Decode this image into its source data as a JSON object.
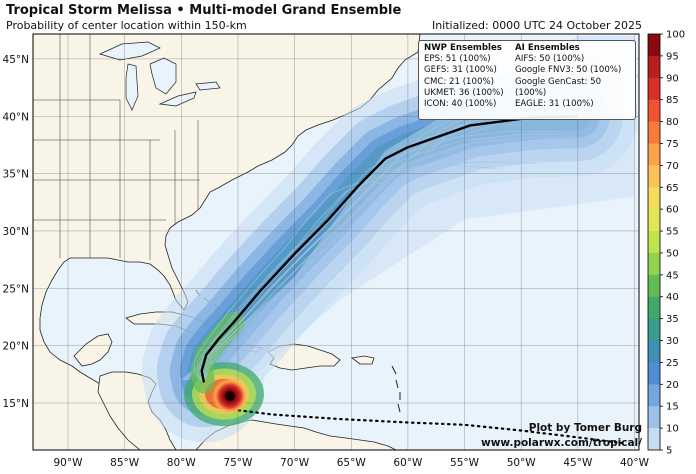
{
  "title": "Tropical Storm Melissa • Multi-model Grand Ensemble",
  "subtitle": "Probability of center location within 150-km",
  "initialized": "Initialized: 0000 UTC 24 October 2025",
  "legend": {
    "nwp_header": "NWP Ensembles",
    "ai_header": "AI Ensembles",
    "nwp_items": [
      "EPS: 51 (100%)",
      "GEFS: 31 (100%)",
      "CMC: 21 (100%)",
      "UKMET: 36 (100%)",
      "ICON: 40 (100%)"
    ],
    "ai_items": [
      "AIFS: 50 (100%)",
      "Google FNV3: 50 (100%)",
      "Google GenCast: 50 (100%)",
      "EAGLE: 31 (100%)"
    ]
  },
  "credit": {
    "line1": "Plot by Tomer Burg",
    "line2": "www.polarwx.com/tropical/"
  },
  "lat_labels": [
    {
      "deg": 45,
      "text": "45°N"
    },
    {
      "deg": 40,
      "text": "40°N"
    },
    {
      "deg": 35,
      "text": "35°N"
    },
    {
      "deg": 30,
      "text": "30°N"
    },
    {
      "deg": 25,
      "text": "25°N"
    },
    {
      "deg": 20,
      "text": "20°N"
    },
    {
      "deg": 15,
      "text": "15°N"
    }
  ],
  "lon_labels": [
    {
      "deg": -90,
      "text": "90°W"
    },
    {
      "deg": -85,
      "text": "85°W"
    },
    {
      "deg": -80,
      "text": "80°W"
    },
    {
      "deg": -75,
      "text": "75°W"
    },
    {
      "deg": -70,
      "text": "70°W"
    },
    {
      "deg": -65,
      "text": "65°W"
    },
    {
      "deg": -60,
      "text": "60°W"
    },
    {
      "deg": -55,
      "text": "55°W"
    },
    {
      "deg": -50,
      "text": "50°W"
    },
    {
      "deg": -45,
      "text": "45°W"
    },
    {
      "deg": -40,
      "text": "40°W"
    }
  ],
  "colorbar": {
    "ticks": [
      100,
      95,
      90,
      85,
      80,
      75,
      70,
      65,
      60,
      55,
      50,
      45,
      40,
      35,
      30,
      25,
      20,
      15,
      10,
      5
    ],
    "colors": [
      "#8b0a10",
      "#b71f1f",
      "#d73027",
      "#ef5330",
      "#f67b3c",
      "#fba24b",
      "#fdc35a",
      "#f5dc5c",
      "#e1e654",
      "#bfe34f",
      "#92d24e",
      "#63bd55",
      "#40a96a",
      "#3a9c8f",
      "#3f91b3",
      "#4f8ed1",
      "#71a6df",
      "#9cc2ea",
      "#c5dcf3"
    ]
  },
  "colors": {
    "ocean": "#e9f3fb",
    "land": "#f9f4e8",
    "borders": "#222222",
    "ensemble_lines": "#a9c6e0",
    "mean_track": "#000000"
  },
  "mean_track": [
    [
      -78.0,
      16.8
    ],
    [
      -78.2,
      17.8
    ],
    [
      -77.8,
      19.2
    ],
    [
      -76.7,
      20.6
    ],
    [
      -75.4,
      22.0
    ],
    [
      -73.0,
      24.8
    ],
    [
      -70.0,
      28.0
    ],
    [
      -67.0,
      31.0
    ],
    [
      -64.5,
      33.8
    ],
    [
      -62.0,
      36.3
    ],
    [
      -60.0,
      37.3
    ],
    [
      -54.5,
      39.2
    ],
    [
      -49.0,
      39.9
    ],
    [
      -45.0,
      40.0
    ]
  ],
  "ensemble_lines_meta": "visual ensemble traces",
  "dotted_track": [
    [
      -76.0,
      14.5
    ],
    [
      -72.0,
      14.0
    ],
    [
      -66.0,
      13.6
    ],
    [
      -60.0,
      13.3
    ],
    [
      -55.0,
      13.1
    ],
    [
      -50.0,
      12.6
    ],
    [
      -45.0,
      12.0
    ],
    [
      -41.0,
      11.5
    ]
  ],
  "storm_center": {
    "lon": -75.7,
    "lat": 15.6
  }
}
